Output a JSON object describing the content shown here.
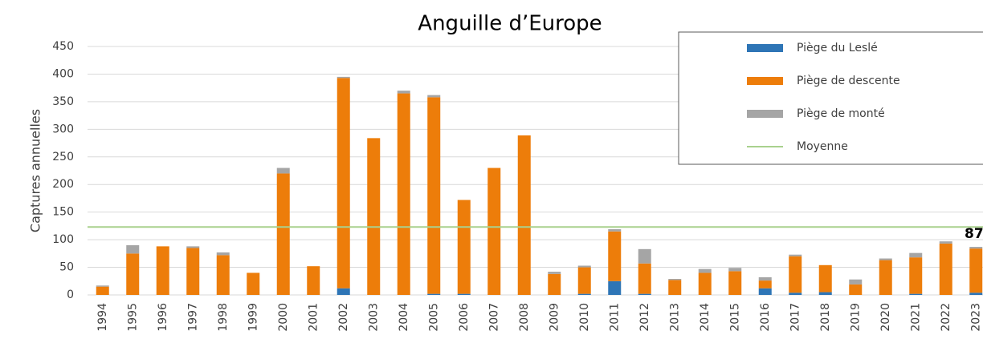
{
  "chart_data": {
    "type": "stacked_bar",
    "title": "Anguille d’Europe",
    "y_label": "Captures annuelles",
    "categories": [
      "1994",
      "1995",
      "1996",
      "1997",
      "1998",
      "1999",
      "2000",
      "2001",
      "2002",
      "2003",
      "2004",
      "2005",
      "2006",
      "2007",
      "2008",
      "2009",
      "2010",
      "2011",
      "2012",
      "2013",
      "2014",
      "2015",
      "2016",
      "2017",
      "2018",
      "2019",
      "2020",
      "2021",
      "2022",
      "2023"
    ],
    "series": [
      {
        "name": "Piège du Leslé",
        "color": "#2e75b6",
        "values": [
          0,
          0,
          0,
          0,
          0,
          0,
          0,
          0,
          12,
          0,
          0,
          2,
          2,
          0,
          0,
          0,
          2,
          25,
          2,
          0,
          0,
          0,
          12,
          4,
          5,
          0,
          0,
          2,
          0,
          4
        ]
      },
      {
        "name": "Piège de descente",
        "color": "#ed7d0a",
        "values": [
          15,
          75,
          88,
          85,
          72,
          40,
          220,
          52,
          381,
          284,
          365,
          356,
          170,
          230,
          289,
          38,
          48,
          90,
          55,
          27,
          40,
          43,
          14,
          66,
          49,
          19,
          63,
          66,
          93,
          80
        ]
      },
      {
        "name": "Piège de monté",
        "color": "#a5a5a5",
        "values": [
          2,
          15,
          0,
          3,
          5,
          0,
          10,
          0,
          2,
          0,
          5,
          4,
          0,
          0,
          0,
          4,
          3,
          4,
          26,
          2,
          7,
          6,
          6,
          3,
          0,
          9,
          3,
          8,
          4,
          3
        ]
      }
    ],
    "mean": {
      "name": "Moyenne",
      "color": "#a9d18e",
      "value": 123
    },
    "annotation": "87",
    "ylim": [
      0,
      450
    ],
    "yticks": [
      0,
      50,
      100,
      150,
      200,
      250,
      300,
      350,
      400,
      450
    ],
    "grid": true
  }
}
